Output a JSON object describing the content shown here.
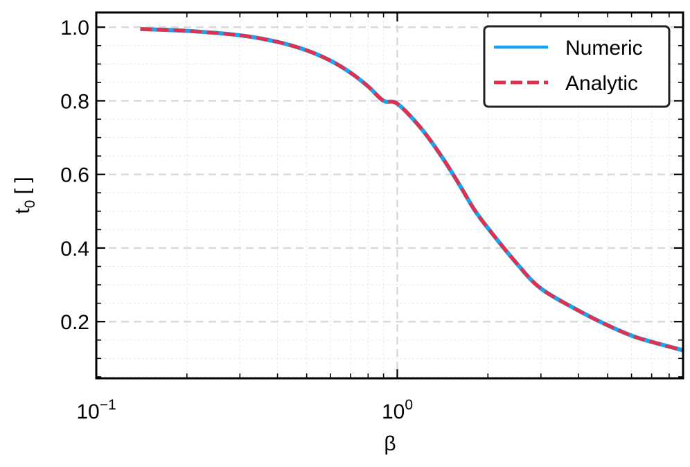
{
  "chart_data": {
    "type": "line",
    "xscale": "log",
    "xlim": [
      0.1,
      8.9
    ],
    "ylim": [
      0.046,
      1.04
    ],
    "xlabel": "β",
    "ylabel": "t",
    "ylabel_sub": "0",
    "ylabel_unit": " [ ]",
    "x_ticks": [
      {
        "value": 0.1,
        "base": "10",
        "exp": "−1"
      },
      {
        "value": 1,
        "base": "10",
        "exp": "0"
      }
    ],
    "y_ticks": [
      {
        "value": 0.2,
        "label": "0.2"
      },
      {
        "value": 0.4,
        "label": "0.4"
      },
      {
        "value": 0.6,
        "label": "0.6"
      },
      {
        "value": 0.8,
        "label": "0.8"
      },
      {
        "value": 1.0,
        "label": "1.0"
      }
    ],
    "grid": true,
    "legend_position": "top-right",
    "series": [
      {
        "name": "Numeric",
        "style": "solid",
        "color": "#1aa4f0",
        "x": [
          0.14,
          0.2,
          0.3,
          0.4,
          0.5,
          0.6,
          0.7,
          0.8,
          0.9,
          1.0,
          1.2,
          1.4,
          1.6,
          1.8,
          2.0,
          2.5,
          3.0,
          4.0,
          5.0,
          6.0,
          7.0,
          8.9
        ],
        "y": [
          0.995,
          0.99,
          0.978,
          0.96,
          0.937,
          0.909,
          0.876,
          0.839,
          0.8,
          0.792,
          0.725,
          0.65,
          0.575,
          0.505,
          0.454,
          0.357,
          0.29,
          0.23,
          0.19,
          0.162,
          0.145,
          0.122
        ]
      },
      {
        "name": "Analytic",
        "style": "dashed",
        "color": "#e0304c",
        "x": [
          0.14,
          0.2,
          0.3,
          0.4,
          0.5,
          0.6,
          0.7,
          0.8,
          0.9,
          1.0,
          1.2,
          1.4,
          1.6,
          1.8,
          2.0,
          2.5,
          3.0,
          4.0,
          5.0,
          6.0,
          7.0,
          8.9
        ],
        "y": [
          0.995,
          0.99,
          0.978,
          0.96,
          0.937,
          0.909,
          0.876,
          0.839,
          0.8,
          0.792,
          0.725,
          0.65,
          0.575,
          0.505,
          0.454,
          0.357,
          0.29,
          0.23,
          0.19,
          0.162,
          0.145,
          0.122
        ]
      }
    ]
  }
}
